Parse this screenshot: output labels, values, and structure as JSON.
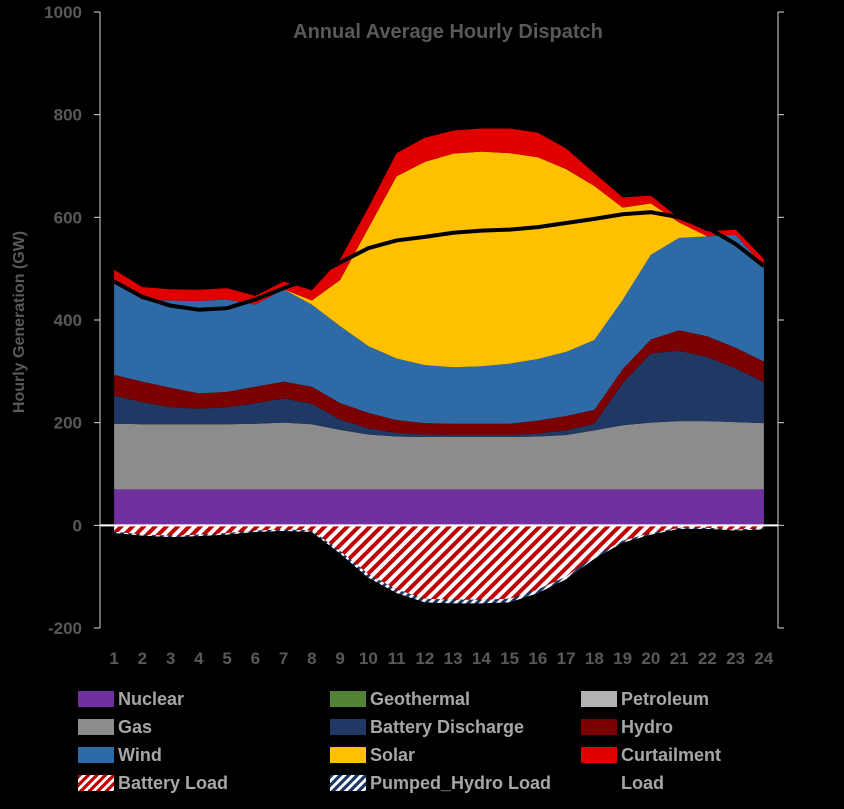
{
  "chart_data": {
    "type": "area",
    "title": "Annual Average Hourly Dispatch",
    "ylabel": "Hourly Generation (GW)",
    "xlabel": "",
    "x": [
      1,
      2,
      3,
      4,
      5,
      6,
      7,
      8,
      9,
      10,
      11,
      12,
      13,
      14,
      15,
      16,
      17,
      18,
      19,
      20,
      21,
      22,
      23,
      24
    ],
    "ylim": [
      -200,
      1000
    ],
    "yticks": [
      -200,
      0,
      200,
      400,
      600,
      800,
      1000
    ],
    "stacked_positive": [
      {
        "name": "Nuclear",
        "color": "#7030a0",
        "values": [
          70,
          70,
          70,
          70,
          70,
          70,
          70,
          70,
          70,
          70,
          70,
          70,
          70,
          70,
          70,
          70,
          70,
          70,
          70,
          70,
          70,
          70,
          70,
          70
        ]
      },
      {
        "name": "Geothermal",
        "color": "#548235",
        "values": [
          0,
          0,
          0,
          0,
          0,
          0,
          0,
          0,
          0,
          0,
          0,
          0,
          0,
          0,
          0,
          0,
          0,
          0,
          0,
          0,
          0,
          0,
          0,
          0
        ]
      },
      {
        "name": "Petroleum",
        "color": "#b3b3b3",
        "values": [
          0,
          0,
          0,
          0,
          0,
          0,
          0,
          0,
          0,
          0,
          0,
          0,
          0,
          0,
          0,
          0,
          0,
          0,
          0,
          0,
          0,
          0,
          0,
          0
        ]
      },
      {
        "name": "Gas",
        "color": "#8c8c8c",
        "values": [
          128,
          127,
          127,
          127,
          127,
          128,
          130,
          127,
          116,
          107,
          103,
          102,
          102,
          102,
          102,
          103,
          106,
          115,
          125,
          130,
          133,
          133,
          131,
          129
        ]
      },
      {
        "name": "Battery Discharge",
        "color": "#203864",
        "values": [
          55,
          43,
          33,
          30,
          33,
          40,
          47,
          40,
          20,
          12,
          7,
          5,
          4,
          4,
          4,
          6,
          9,
          13,
          82,
          135,
          137,
          125,
          105,
          80
        ]
      },
      {
        "name": "Hydro",
        "color": "#7b0000",
        "values": [
          40,
          40,
          38,
          30,
          30,
          32,
          33,
          33,
          32,
          30,
          25,
          22,
          22,
          22,
          22,
          25,
          28,
          27,
          27,
          27,
          40,
          40,
          40,
          40
        ]
      },
      {
        "name": "Wind",
        "color": "#2e6ba6",
        "values": [
          180,
          160,
          170,
          180,
          180,
          160,
          180,
          160,
          150,
          130,
          120,
          113,
          110,
          112,
          117,
          120,
          125,
          136,
          135,
          165,
          180,
          195,
          220,
          185
        ]
      },
      {
        "name": "Solar",
        "color": "#ffc000",
        "values": [
          0,
          0,
          0,
          0,
          0,
          0,
          0,
          8,
          90,
          230,
          355,
          396,
          416,
          418,
          410,
          393,
          356,
          300,
          180,
          100,
          30,
          0,
          0,
          0
        ]
      },
      {
        "name": "Curtailment",
        "color": "#e00000",
        "values": [
          25,
          24,
          22,
          22,
          22,
          17,
          15,
          20,
          40,
          40,
          45,
          47,
          45,
          45,
          48,
          48,
          40,
          25,
          20,
          15,
          8,
          10,
          10,
          15
        ]
      }
    ],
    "stacked_negative": [
      {
        "name": "Battery Load",
        "color": "#c00000",
        "pattern": "hatch-red",
        "values": [
          -12,
          -18,
          -20,
          -18,
          -15,
          -10,
          -8,
          -10,
          -50,
          -95,
          -125,
          -143,
          -145,
          -145,
          -143,
          -125,
          -100,
          -60,
          -30,
          -15,
          -5,
          -5,
          -8,
          -6
        ]
      },
      {
        "name": "Pumped_Hydro Load",
        "color": "#1f3864",
        "pattern": "hatch-blue",
        "values": [
          -3,
          -2,
          -3,
          -3,
          -3,
          -3,
          -3,
          -3,
          -5,
          -7,
          -7,
          -7,
          -7,
          -7,
          -7,
          -7,
          -5,
          -5,
          -4,
          -3,
          -2,
          -2,
          -2,
          -2
        ]
      }
    ],
    "load": {
      "name": "Load",
      "color": "#000000",
      "values": [
        475,
        445,
        428,
        420,
        423,
        440,
        462,
        483,
        512,
        540,
        555,
        562,
        570,
        574,
        576,
        581,
        589,
        597,
        606,
        610,
        600,
        580,
        548,
        505
      ]
    },
    "legend": {
      "placement": "bottom",
      "entries": [
        "Nuclear",
        "Geothermal",
        "Petroleum",
        "Gas",
        "Battery Discharge",
        "Hydro",
        "Wind",
        "Solar",
        "Curtailment",
        "Battery Load",
        "Pumped_Hydro Load",
        "Load"
      ]
    },
    "grid": false
  }
}
